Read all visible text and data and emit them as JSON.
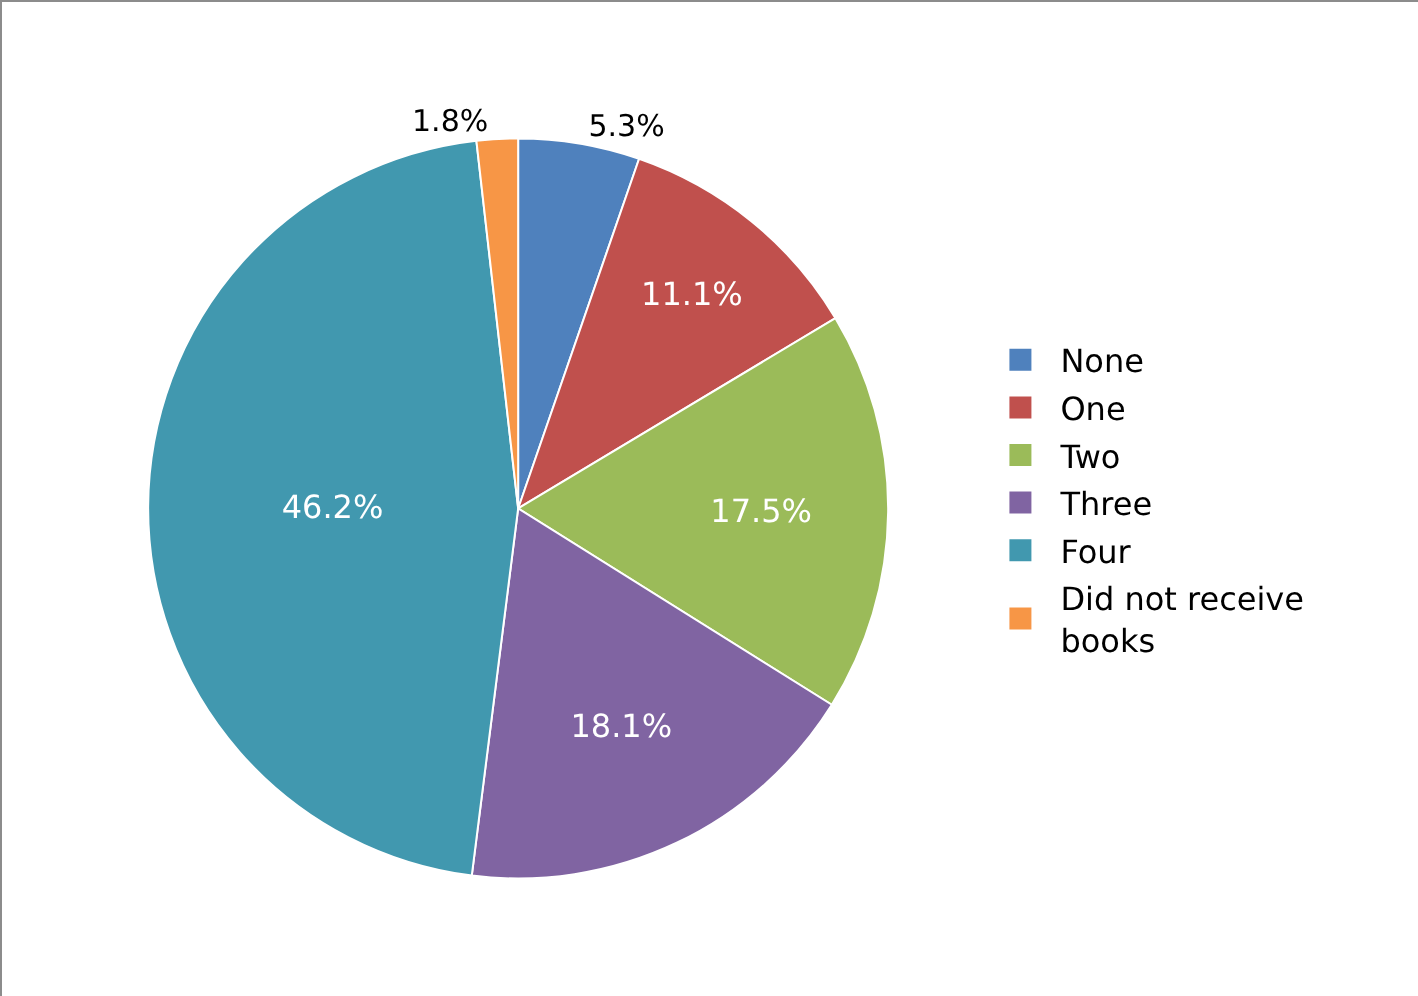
{
  "chart_data": {
    "type": "pie",
    "categories": [
      "None",
      "One",
      "Two",
      "Three",
      "Four",
      "Did not receive books"
    ],
    "values": [
      5.3,
      11.1,
      17.5,
      18.1,
      46.2,
      1.8
    ],
    "value_labels": [
      "5.3%",
      "11.1%",
      "17.5%",
      "18.1%",
      "46.2%",
      "1.8%"
    ],
    "colors": [
      "#4f81bd",
      "#c0504d",
      "#9bbb59",
      "#8064a2",
      "#4198af",
      "#f79646"
    ],
    "legend": "right"
  }
}
